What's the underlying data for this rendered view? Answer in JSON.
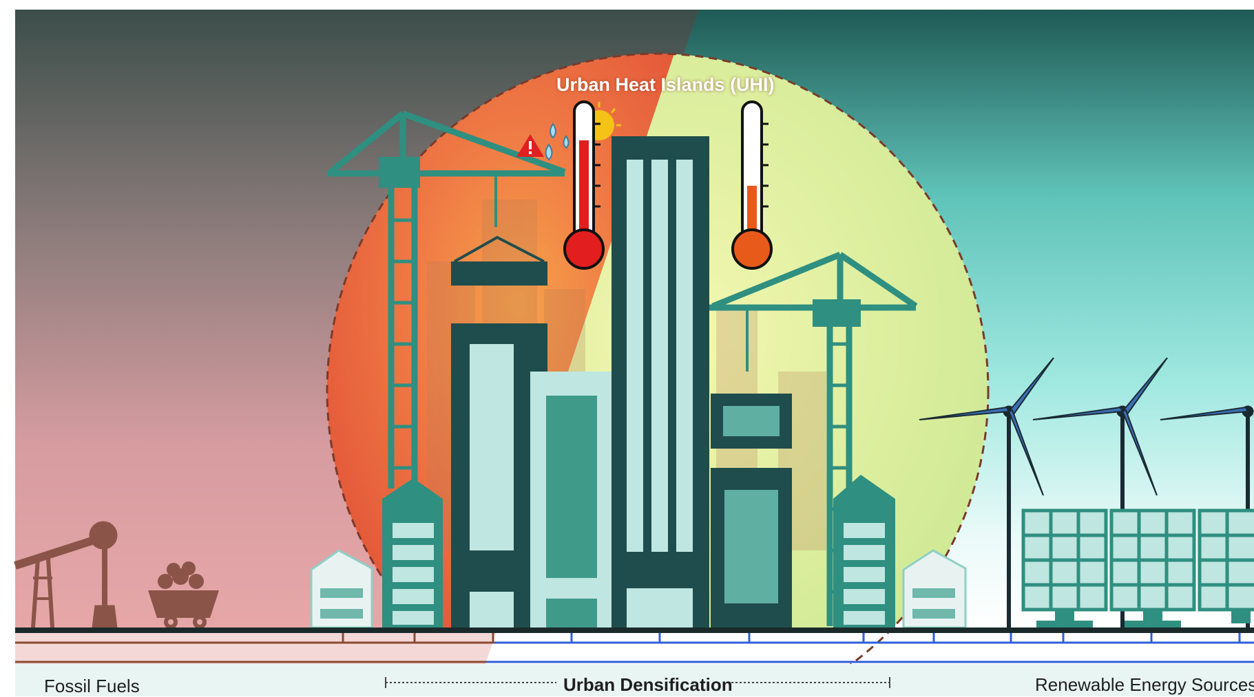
{
  "title": "Urban Heat Islands (UHI)",
  "labels": {
    "left": "Fossil Fuels",
    "center": "Urban Densification",
    "right": "Renewable Energy Sources"
  },
  "icons": [
    "oil-pump-icon",
    "coal-cart-icon",
    "crane-icon",
    "warning-icon",
    "water-drops-icon",
    "sun-icon",
    "thermometer-hot-icon",
    "thermometer-warm-icon",
    "wind-turbine-icon",
    "solar-panel-icon",
    "house-icon",
    "building-icon"
  ],
  "colors": {
    "fossil_sky": "#d99aa0",
    "renewable_sky": "#7fd8d0",
    "heat_zone": "#e8633e",
    "cool_zone": "#d8ec9c",
    "building_dark": "#1f4d4d",
    "building_teal": "#2f8f80",
    "building_light": "#bfe6e0",
    "fossil_line": "#8a4a32",
    "renewable_line": "#2f5fd8"
  },
  "thermometers": {
    "hot_level": 0.78,
    "warm_level": 0.45
  }
}
